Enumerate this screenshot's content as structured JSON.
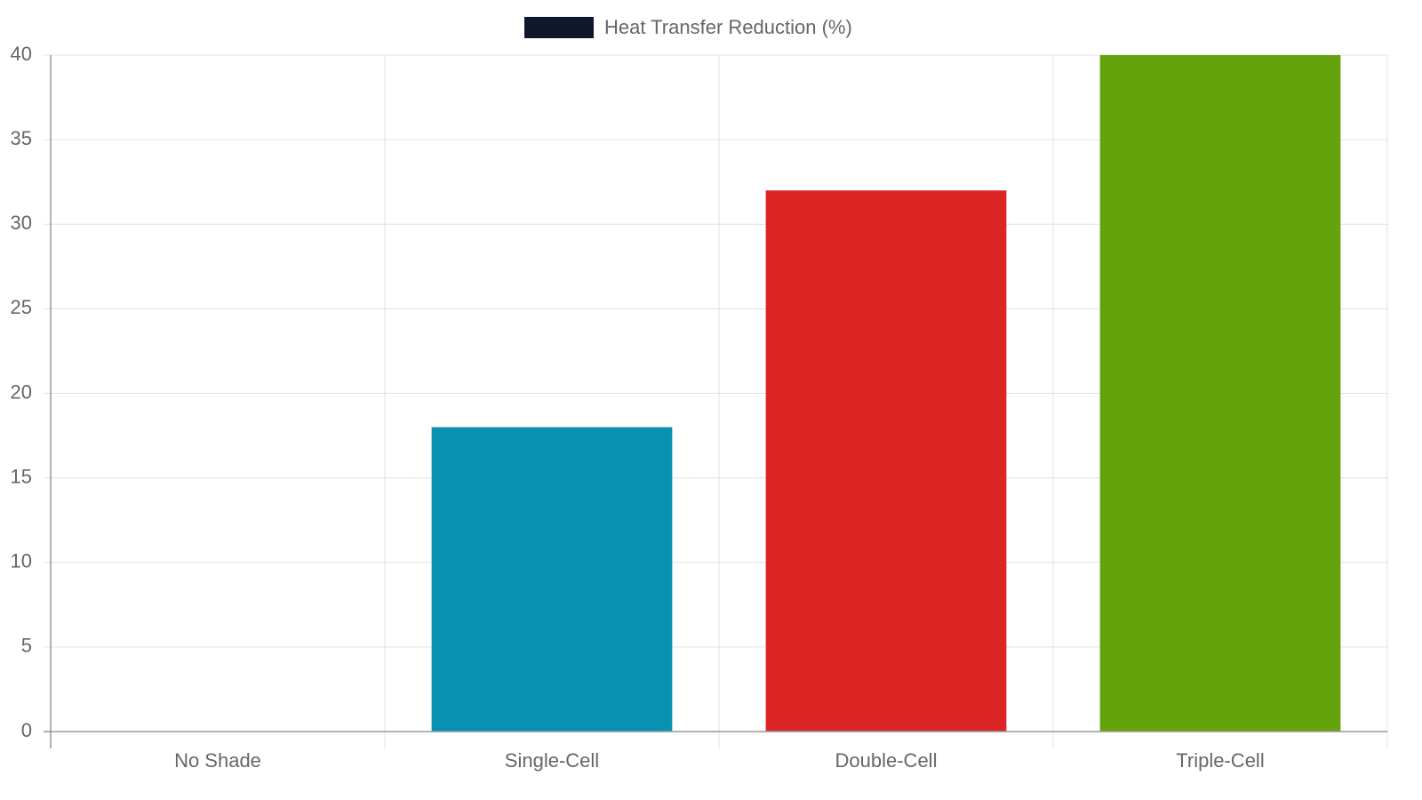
{
  "chart_data": {
    "type": "bar",
    "categories": [
      "No Shade",
      "Single-Cell",
      "Double-Cell",
      "Triple-Cell"
    ],
    "series": [
      {
        "name": "Heat Transfer Reduction (%)",
        "colors": [
          "#0f172a",
          "#0891b2",
          "#dc2626",
          "#65a30d"
        ],
        "values": [
          0,
          18,
          32,
          40
        ]
      }
    ],
    "ylim": [
      0,
      40
    ],
    "yticks": [
      0,
      5,
      10,
      15,
      20,
      25,
      30,
      35,
      40
    ],
    "grid": true,
    "legend": "top"
  }
}
